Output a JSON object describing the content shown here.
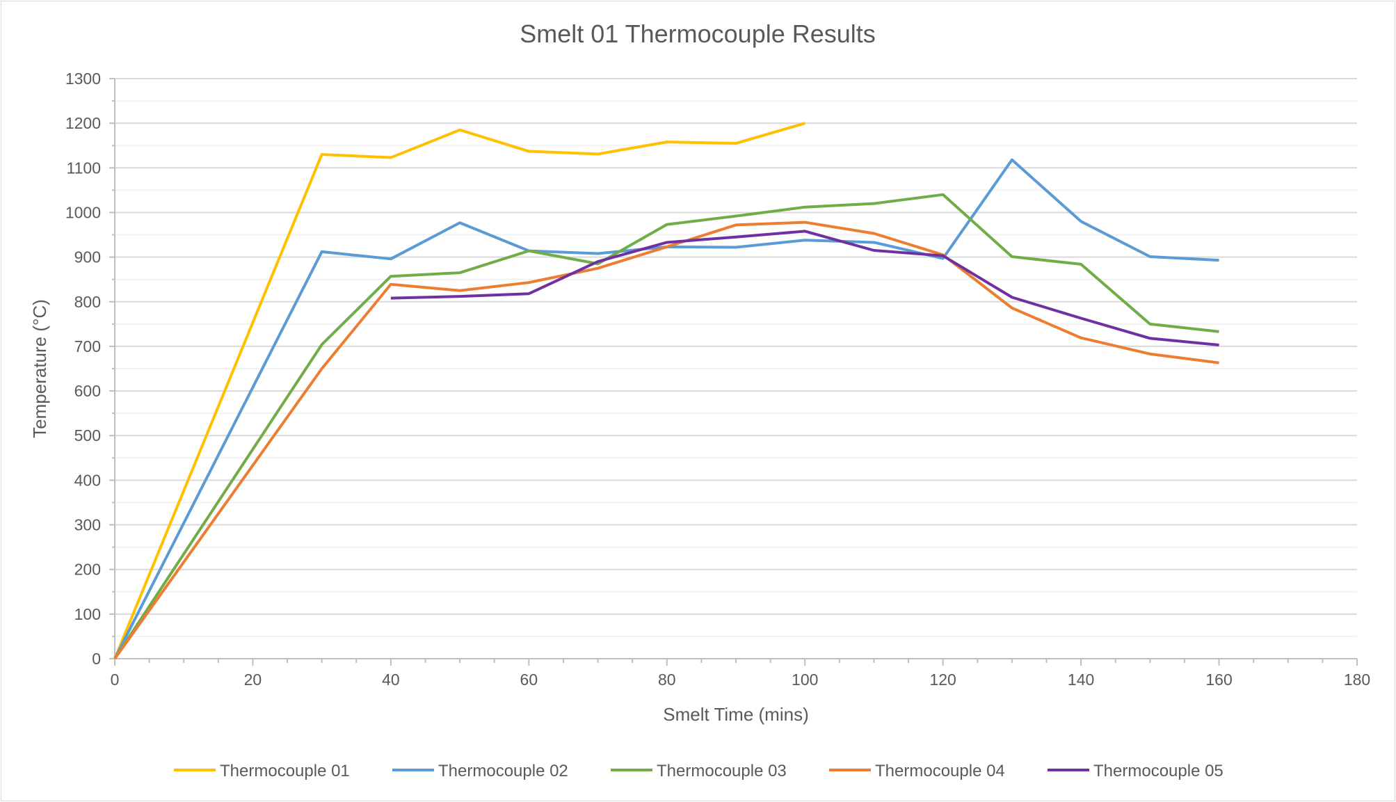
{
  "chart_data": {
    "type": "line",
    "title": "Smelt 01 Thermocouple Results",
    "xlabel": "Smelt Time (mins)",
    "ylabel": "Temperature (°C)",
    "xlim": [
      0,
      180
    ],
    "ylim": [
      0,
      1300
    ],
    "xticks": [
      0,
      20,
      40,
      60,
      80,
      100,
      120,
      140,
      160,
      180
    ],
    "yticks": [
      0,
      100,
      200,
      300,
      400,
      500,
      600,
      700,
      800,
      900,
      1000,
      1100,
      1200,
      1300
    ],
    "grid": true,
    "legend": "bottom",
    "series": [
      {
        "name": "Thermocouple 01",
        "color": "#FFC000",
        "x": [
          0,
          30,
          40,
          50,
          60,
          70,
          80,
          90,
          100
        ],
        "y": [
          0,
          1130,
          1123,
          1185,
          1137,
          1131,
          1158,
          1155,
          1200
        ]
      },
      {
        "name": "Thermocouple 02",
        "color": "#5B9BD5",
        "x": [
          0,
          30,
          40,
          50,
          60,
          70,
          80,
          90,
          100,
          110,
          120,
          130,
          140,
          150,
          160
        ],
        "y": [
          0,
          912,
          896,
          977,
          914,
          908,
          923,
          922,
          938,
          933,
          897,
          1118,
          980,
          901,
          893
        ]
      },
      {
        "name": "Thermocouple 03",
        "color": "#70AD47",
        "x": [
          0,
          30,
          40,
          50,
          60,
          70,
          80,
          90,
          100,
          110,
          120,
          130,
          140,
          150,
          160
        ],
        "y": [
          0,
          704,
          857,
          865,
          914,
          885,
          973,
          992,
          1012,
          1020,
          1040,
          901,
          884,
          750,
          733
        ]
      },
      {
        "name": "Thermocouple 04",
        "color": "#ED7D31",
        "x": [
          0,
          30,
          40,
          50,
          60,
          70,
          80,
          90,
          100,
          110,
          120,
          130,
          140,
          150,
          160
        ],
        "y": [
          0,
          650,
          839,
          825,
          843,
          875,
          923,
          972,
          978,
          953,
          905,
          786,
          719,
          683,
          663
        ]
      },
      {
        "name": "Thermocouple 05",
        "color": "#7030A0",
        "x": [
          40,
          50,
          60,
          70,
          80,
          90,
          100,
          110,
          120,
          130,
          140,
          150,
          160
        ],
        "y": [
          808,
          812,
          818,
          890,
          933,
          945,
          958,
          915,
          903,
          810,
          763,
          718,
          703
        ]
      }
    ]
  }
}
